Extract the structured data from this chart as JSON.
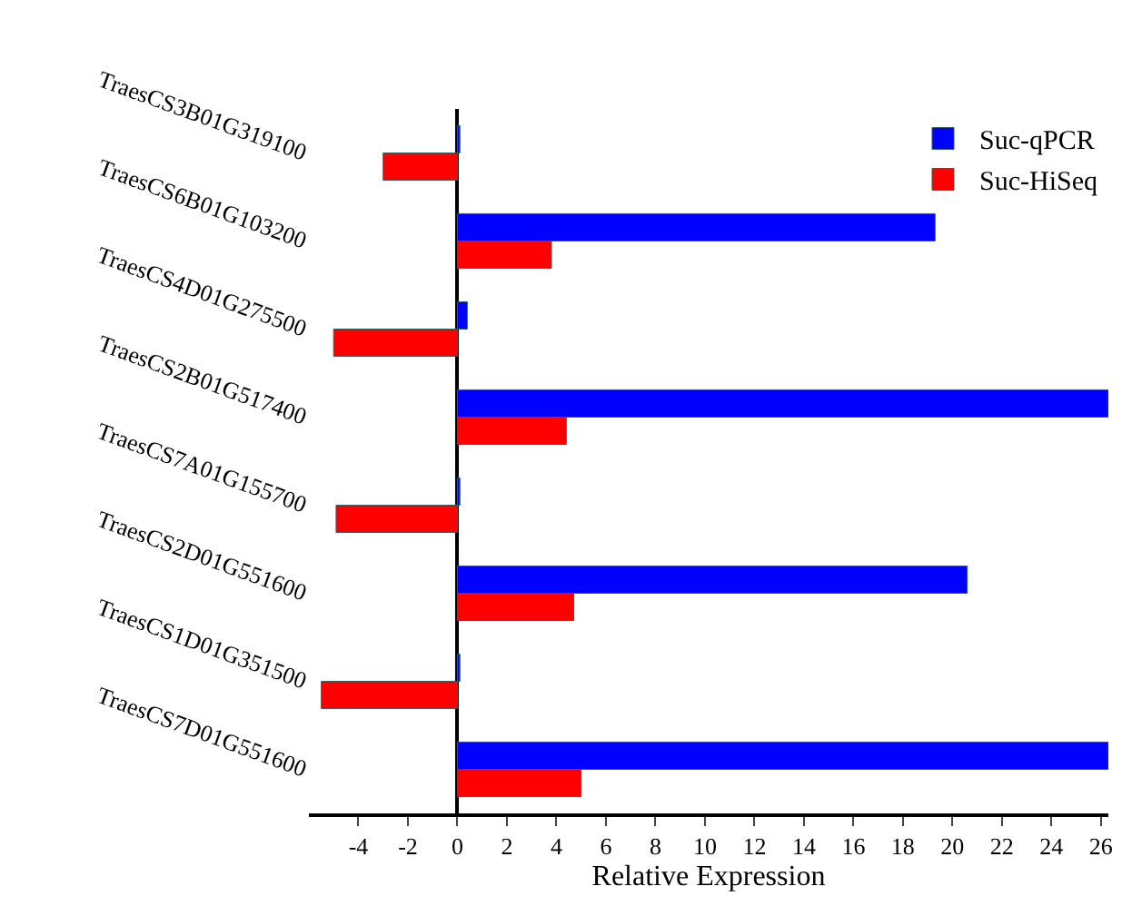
{
  "chart_data": {
    "type": "bar",
    "orientation": "horizontal",
    "xlabel": "Relative Expression",
    "categories": [
      "TraesCS3B01G319100",
      "TraesCS6B01G103200",
      "TraesCS4D01G275500",
      "TraesCS2B01G517400",
      "TraesCS7A01G155700",
      "TraesCS2D01G551600",
      "TraesCS1D01G351500",
      "TraesCS7D01G551600"
    ],
    "series": [
      {
        "name": "Suc-qPCR",
        "color": "#0000ff",
        "values": [
          0.1,
          19.3,
          0.4,
          26.3,
          0.1,
          20.6,
          0.1,
          26.3
        ]
      },
      {
        "name": "Suc-HiSeq",
        "color": "#ff0000",
        "values": [
          -3.0,
          3.8,
          -5.0,
          4.4,
          -4.9,
          4.7,
          -5.5,
          5.0
        ]
      }
    ],
    "xlim": [
      -6,
      26.3
    ],
    "xticks": [
      -4,
      -2,
      0,
      2,
      4,
      6,
      8,
      10,
      12,
      14,
      16,
      18,
      20,
      22,
      24,
      26
    ],
    "legend": "top right",
    "tick_labels": "x"
  }
}
